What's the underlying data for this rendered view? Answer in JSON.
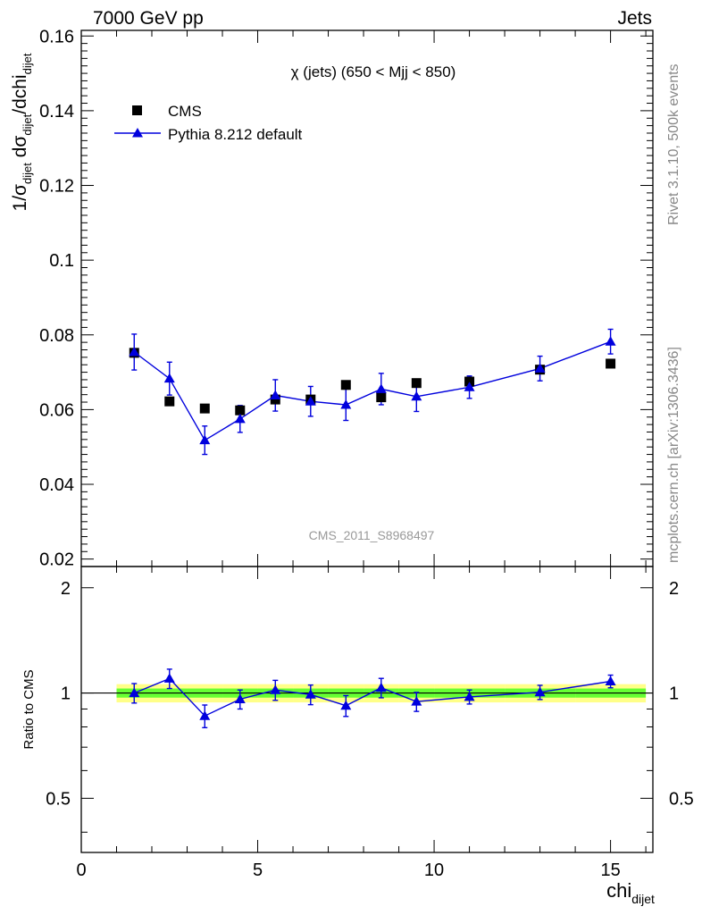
{
  "header": {
    "left": "7000 GeV pp",
    "right": "Jets"
  },
  "side_labels": {
    "rivet": "Rivet 3.1.10,  500k events",
    "mcplots": "mcplots.cern.ch [arXiv:1306.3436]"
  },
  "chart_data": {
    "type": "scatter",
    "title": "χ (jets) (650 < Mjj <  850)",
    "watermark": "CMS_2011_S8968497",
    "ylabel": "1/σ_dijet dσ_dijet/dchi_dijet",
    "ylabel_parts": {
      "a": "1/σ",
      "a_sub": "dijet",
      "b": " dσ",
      "b_sub": "dijet",
      "c": "/dchi",
      "c_sub": "dijet"
    },
    "xlabel": "chi_dijet",
    "xlabel_parts": {
      "main": "chi",
      "sub": "dijet"
    },
    "ratio_ylabel": "Ratio to CMS",
    "xlim": [
      0,
      16.2
    ],
    "ylim": [
      0.018,
      0.1615
    ],
    "ratio_ylim": [
      0.35,
      2.3
    ],
    "yticks": [
      "0.02",
      "0.04",
      "0.06",
      "0.08",
      "0.1",
      "0.12",
      "0.14",
      "0.16"
    ],
    "xticks": [
      "0",
      "5",
      "10",
      "15"
    ],
    "ratio_yticks": [
      "0.5",
      "1",
      "2"
    ],
    "grid": false,
    "legend_position": "top-left",
    "bin_edges": [
      1,
      2,
      3,
      4,
      5,
      6,
      7,
      8,
      9,
      10,
      12,
      14,
      16
    ],
    "series": [
      {
        "name": "CMS",
        "marker": "square",
        "color": "#000000",
        "x": [
          1.5,
          2.5,
          3.5,
          4.5,
          5.5,
          6.5,
          7.5,
          8.5,
          9.5,
          11,
          13,
          15
        ],
        "y": [
          0.0752,
          0.0622,
          0.0603,
          0.0598,
          0.0627,
          0.0627,
          0.0666,
          0.0633,
          0.0671,
          0.0675,
          0.0707,
          0.0723
        ],
        "yerr": [
          0.0006,
          0.0007,
          0.0006,
          0.0006,
          0.0006,
          0.0006,
          0.0006,
          0.0006,
          0.0006,
          0.0006,
          0.0006,
          0.0006
        ]
      },
      {
        "name": "Pythia 8.212 default",
        "marker": "triangle",
        "color": "#0000dd",
        "x": [
          1.5,
          2.5,
          3.5,
          4.5,
          5.5,
          6.5,
          7.5,
          8.5,
          9.5,
          11,
          13,
          15
        ],
        "y": [
          0.0754,
          0.0683,
          0.0518,
          0.0575,
          0.0638,
          0.0622,
          0.0613,
          0.0655,
          0.0635,
          0.066,
          0.071,
          0.0782
        ],
        "yerr": [
          0.0048,
          0.0044,
          0.0038,
          0.0036,
          0.0042,
          0.004,
          0.0042,
          0.0042,
          0.004,
          0.003,
          0.0033,
          0.0033
        ]
      }
    ],
    "ratio": {
      "x": [
        1.5,
        2.5,
        3.5,
        4.5,
        5.5,
        6.5,
        7.5,
        8.5,
        9.5,
        11,
        13,
        15
      ],
      "y": [
        1.0,
        1.1,
        0.86,
        0.96,
        1.02,
        0.99,
        0.92,
        1.035,
        0.945,
        0.975,
        1.005,
        1.08
      ],
      "yerr": [
        0.064,
        0.07,
        0.064,
        0.06,
        0.067,
        0.064,
        0.063,
        0.066,
        0.059,
        0.045,
        0.047,
        0.045
      ],
      "band_inner": 0.03,
      "band_outer": 0.06,
      "band_colors": {
        "inner": "#66ff33",
        "outer": "#ffff88"
      }
    }
  }
}
